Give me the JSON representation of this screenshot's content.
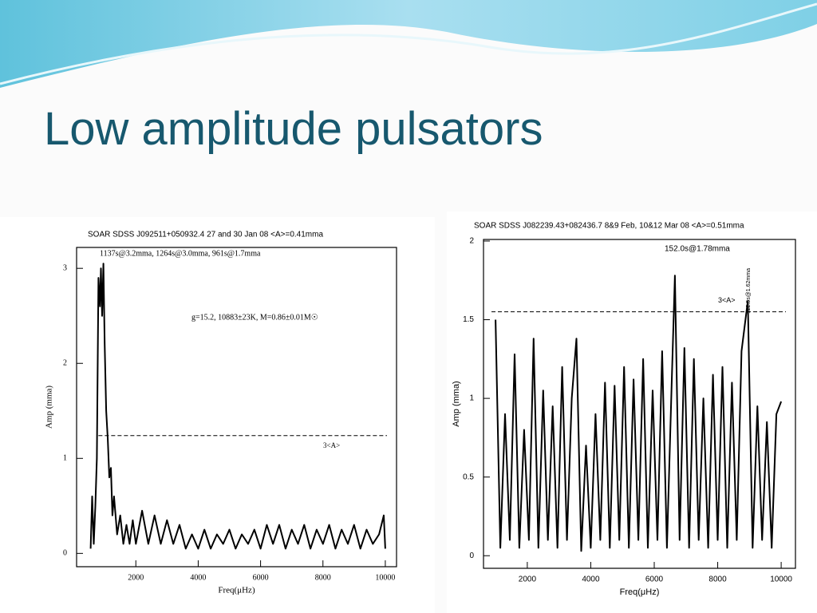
{
  "title": "Low amplitude pulsators",
  "chart_data": [
    {
      "type": "line",
      "title": "SOAR SDSS J092511+050932.4 27 and 30 Jan 08 <A>=0.41mma",
      "annotations": [
        "1137s@3.2mma, 1264s@3.0mma, 961s@1.7mma",
        "g=15.2, 10883±23K, M=0.86±0.01M☉"
      ],
      "x_label": "Freq(μHz)",
      "y_label": "Amp (mma)",
      "x": [
        550,
        600,
        650,
        700,
        750,
        800,
        850,
        880,
        920,
        960,
        1000,
        1050,
        1100,
        1150,
        1200,
        1250,
        1300,
        1400,
        1500,
        1600,
        1700,
        1800,
        1900,
        2000,
        2200,
        2400,
        2600,
        2800,
        3000,
        3200,
        3400,
        3600,
        3800,
        4000,
        4200,
        4400,
        4600,
        4800,
        5000,
        5200,
        5400,
        5600,
        5800,
        6000,
        6200,
        6400,
        6600,
        6800,
        7000,
        7200,
        7400,
        7600,
        7800,
        8000,
        8200,
        8400,
        8600,
        8800,
        9000,
        9200,
        9400,
        9600,
        9800,
        9950,
        10000
      ],
      "values": [
        0.05,
        0.6,
        0.1,
        0.5,
        1.0,
        2.9,
        2.6,
        3.0,
        2.5,
        3.05,
        2.2,
        1.5,
        1.2,
        0.8,
        0.9,
        0.4,
        0.6,
        0.2,
        0.4,
        0.1,
        0.3,
        0.1,
        0.35,
        0.1,
        0.45,
        0.1,
        0.4,
        0.1,
        0.35,
        0.1,
        0.3,
        0.05,
        0.2,
        0.05,
        0.25,
        0.05,
        0.2,
        0.1,
        0.25,
        0.05,
        0.2,
        0.1,
        0.25,
        0.05,
        0.3,
        0.1,
        0.3,
        0.05,
        0.25,
        0.1,
        0.3,
        0.05,
        0.25,
        0.1,
        0.3,
        0.05,
        0.25,
        0.1,
        0.3,
        0.05,
        0.25,
        0.1,
        0.2,
        0.4,
        0.05
      ],
      "color": "#000000",
      "threshold": {
        "label": "3<A>",
        "value": 1.24
      },
      "xlim": [
        100,
        10360
      ],
      "ylim": [
        -0.14,
        3.22
      ],
      "xticks": [
        2000,
        4000,
        6000,
        8000,
        10000
      ],
      "yticks": [
        0,
        1,
        2,
        3
      ]
    },
    {
      "type": "line",
      "title": "SOAR SDSS J082239.43+082436.7 8&9 Feb, 10&12 Mar 08 <A>=0.51mma",
      "annotations": [
        "152.0s@1.78mma",
        "112.5s@1.62mma"
      ],
      "x_label": "Freq(μHz)",
      "y_label": "Amp (mma)",
      "x": [
        1000,
        1150,
        1300,
        1450,
        1600,
        1750,
        1900,
        2050,
        2200,
        2350,
        2500,
        2650,
        2800,
        2950,
        3100,
        3250,
        3400,
        3550,
        3700,
        3850,
        4000,
        4150,
        4300,
        4450,
        4600,
        4750,
        4900,
        5050,
        5200,
        5350,
        5500,
        5650,
        5800,
        5950,
        6100,
        6250,
        6400,
        6550,
        6650,
        6800,
        6950,
        7100,
        7250,
        7400,
        7550,
        7700,
        7850,
        8000,
        8150,
        8300,
        8450,
        8600,
        8750,
        8950,
        9100,
        9250,
        9400,
        9550,
        9700,
        9850,
        10000
      ],
      "values": [
        1.5,
        0.05,
        0.9,
        0.1,
        1.28,
        0.05,
        0.8,
        0.1,
        1.38,
        0.05,
        1.05,
        0.1,
        0.95,
        0.05,
        1.2,
        0.1,
        1.0,
        1.38,
        0.03,
        0.7,
        0.05,
        0.9,
        0.1,
        1.1,
        0.05,
        1.08,
        0.1,
        1.2,
        0.05,
        1.12,
        0.1,
        1.25,
        0.05,
        1.05,
        0.1,
        1.3,
        0.05,
        1.1,
        1.78,
        0.1,
        1.32,
        0.05,
        1.25,
        0.1,
        1.0,
        0.05,
        1.15,
        0.1,
        1.2,
        0.05,
        1.1,
        0.1,
        1.3,
        1.62,
        0.05,
        0.95,
        0.1,
        0.85,
        0.05,
        0.9,
        0.98
      ],
      "color": "#000000",
      "threshold": {
        "label": "3<A>",
        "value": 1.55
      },
      "xlim": [
        620,
        10450
      ],
      "ylim": [
        -0.08,
        2.01
      ],
      "xticks": [
        2000,
        4000,
        6000,
        8000,
        10000
      ],
      "yticks": [
        0,
        0.5,
        1,
        1.5,
        2
      ]
    }
  ]
}
